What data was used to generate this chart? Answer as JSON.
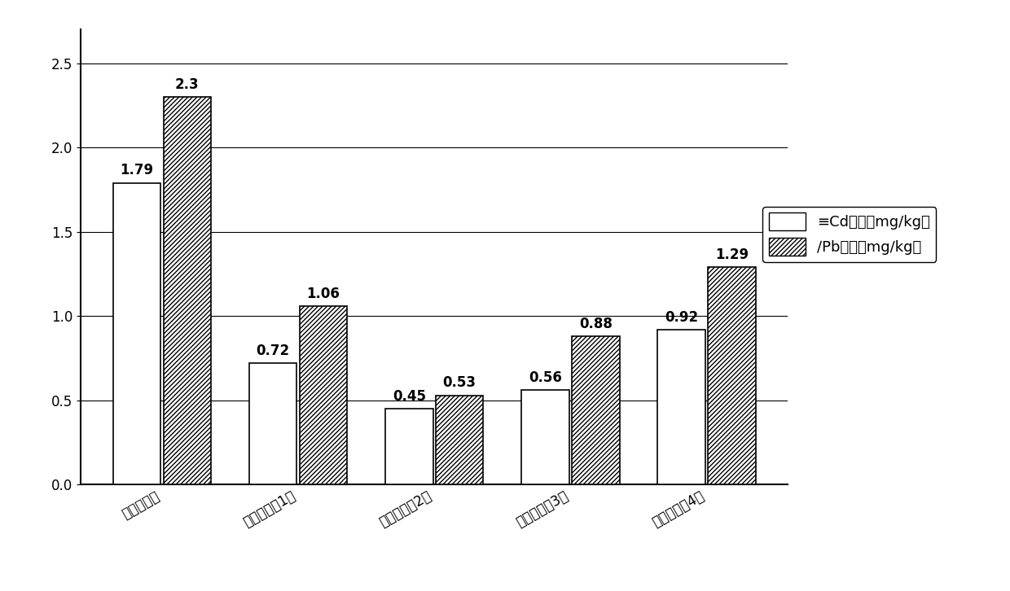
{
  "categories": [
    "空白对照组",
    "修复方式（1）",
    "修复方式（2）",
    "修复方式（3）",
    "修复方式（4）"
  ],
  "cd_values": [
    1.79,
    0.72,
    0.45,
    0.56,
    0.92
  ],
  "pb_values": [
    2.3,
    1.06,
    0.53,
    0.88,
    1.29
  ],
  "cd_label": "≡Cd含量（mg/kg）",
  "pb_label": "∕Pb含量（mg/kg）",
  "ylim": [
    0,
    2.7
  ],
  "yticks": [
    0,
    0.5,
    1.0,
    1.5,
    2.0,
    2.5
  ],
  "bar_width": 0.35,
  "background_color": "#ffffff",
  "value_fontsize": 12,
  "tick_fontsize": 12,
  "legend_fontsize": 13
}
